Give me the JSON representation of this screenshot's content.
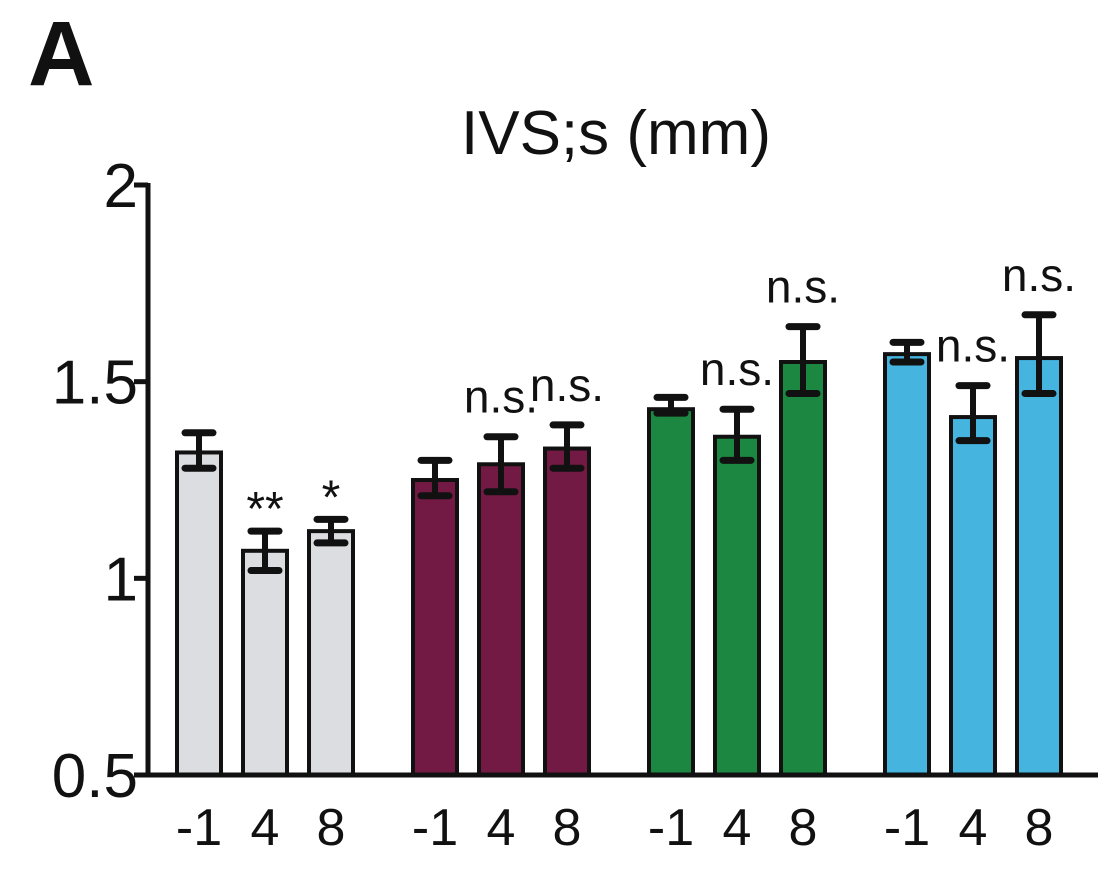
{
  "panel_label": "A",
  "chart_data": {
    "type": "bar",
    "title": "IVS;s (mm)",
    "xlabel": "",
    "ylabel": "",
    "ylim": [
      0.5,
      2
    ],
    "yticks": [
      "0.5",
      "1",
      "1.5",
      "2"
    ],
    "grid": false,
    "groups": [
      {
        "color": "#dcdde0",
        "bars": [
          {
            "x": "-1",
            "value": 1.32,
            "err_low": 1.28,
            "err_high": 1.37,
            "annotation": ""
          },
          {
            "x": "4",
            "value": 1.07,
            "err_low": 1.02,
            "err_high": 1.12,
            "annotation": "**"
          },
          {
            "x": "8",
            "value": 1.12,
            "err_low": 1.09,
            "err_high": 1.15,
            "annotation": "*"
          }
        ]
      },
      {
        "color": "#721a43",
        "bars": [
          {
            "x": "-1",
            "value": 1.25,
            "err_low": 1.21,
            "err_high": 1.3,
            "annotation": ""
          },
          {
            "x": "4",
            "value": 1.29,
            "err_low": 1.22,
            "err_high": 1.36,
            "annotation": "n.s."
          },
          {
            "x": "8",
            "value": 1.33,
            "err_low": 1.28,
            "err_high": 1.39,
            "annotation": "n.s."
          }
        ]
      },
      {
        "color": "#1c8740",
        "bars": [
          {
            "x": "-1",
            "value": 1.43,
            "err_low": 1.42,
            "err_high": 1.46,
            "annotation": ""
          },
          {
            "x": "4",
            "value": 1.36,
            "err_low": 1.3,
            "err_high": 1.43,
            "annotation": "n.s."
          },
          {
            "x": "8",
            "value": 1.55,
            "err_low": 1.47,
            "err_high": 1.64,
            "annotation": "n.s."
          }
        ]
      },
      {
        "color": "#45b5e0",
        "bars": [
          {
            "x": "-1",
            "value": 1.57,
            "err_low": 1.55,
            "err_high": 1.6,
            "annotation": ""
          },
          {
            "x": "4",
            "value": 1.41,
            "err_low": 1.35,
            "err_high": 1.49,
            "annotation": "n.s."
          },
          {
            "x": "8",
            "value": 1.56,
            "err_low": 1.47,
            "err_high": 1.67,
            "annotation": "n.s."
          }
        ]
      }
    ]
  }
}
